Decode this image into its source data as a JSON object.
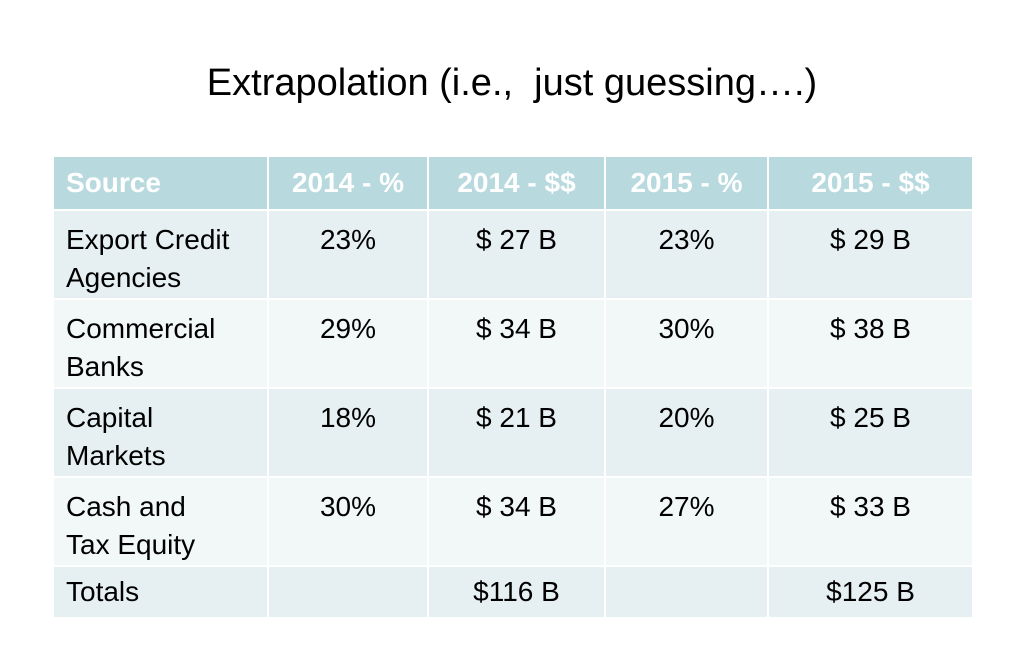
{
  "title": "Extrapolation (i.e.,  just guessing….)",
  "table": {
    "columns": [
      "Source",
      "2014 - %",
      "2014 - $$",
      "2015 - %",
      "2015 - $$"
    ],
    "rows": [
      [
        "Export Credit\nAgencies",
        "23%",
        "$ 27 B",
        "23%",
        "$ 29 B"
      ],
      [
        "Commercial\nBanks",
        "29%",
        "$ 34 B",
        "30%",
        "$ 38 B"
      ],
      [
        "Capital\nMarkets",
        "18%",
        "$ 21 B",
        "20%",
        "$ 25 B"
      ],
      [
        "Cash and\nTax Equity",
        "30%",
        "$ 34 B",
        "27%",
        "$ 33 B"
      ]
    ],
    "totals": [
      "Totals",
      "",
      "$116 B",
      "",
      "$125 B"
    ]
  },
  "colors": {
    "header_background": "#b8dadf",
    "header_text": "#ffffff",
    "row_odd": "#e6f0f2",
    "row_even": "#f2f7f8"
  }
}
